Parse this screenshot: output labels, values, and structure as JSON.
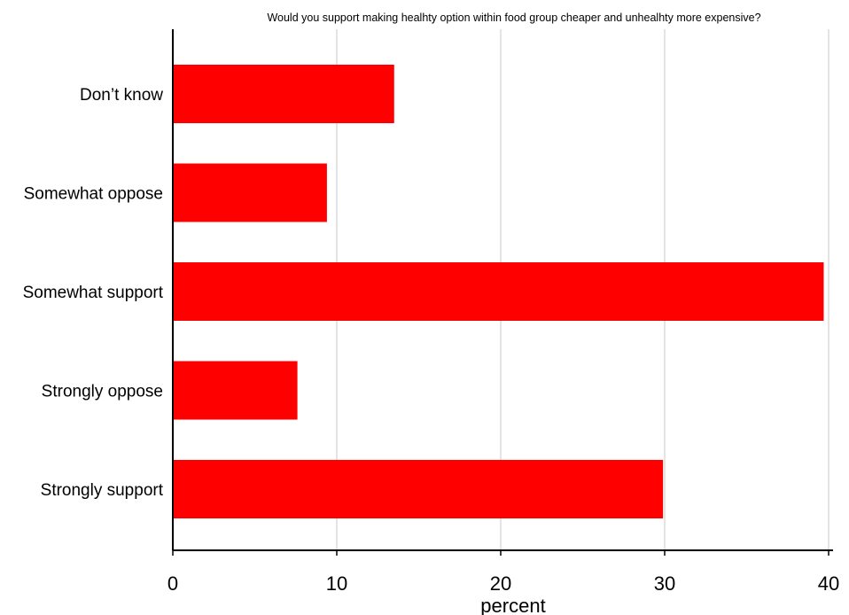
{
  "chart_data": {
    "type": "bar",
    "orientation": "horizontal",
    "title": "Would you support making healhty option within food group cheaper and unhealhty more expensive?",
    "xlabel": "percent",
    "ylabel": "",
    "categories": [
      "Don’t know",
      "Somewhat oppose",
      "Somewhat support",
      "Strongly oppose",
      "Strongly support"
    ],
    "values": [
      13.5,
      9.4,
      39.7,
      7.6,
      29.9
    ],
    "xlim": [
      0,
      40
    ],
    "xticks": [
      "0",
      "10",
      "20",
      "30",
      "40"
    ],
    "grid": true,
    "legend": "none",
    "bar_color": "#ff0000",
    "grid_color": "#dcdcdc"
  }
}
